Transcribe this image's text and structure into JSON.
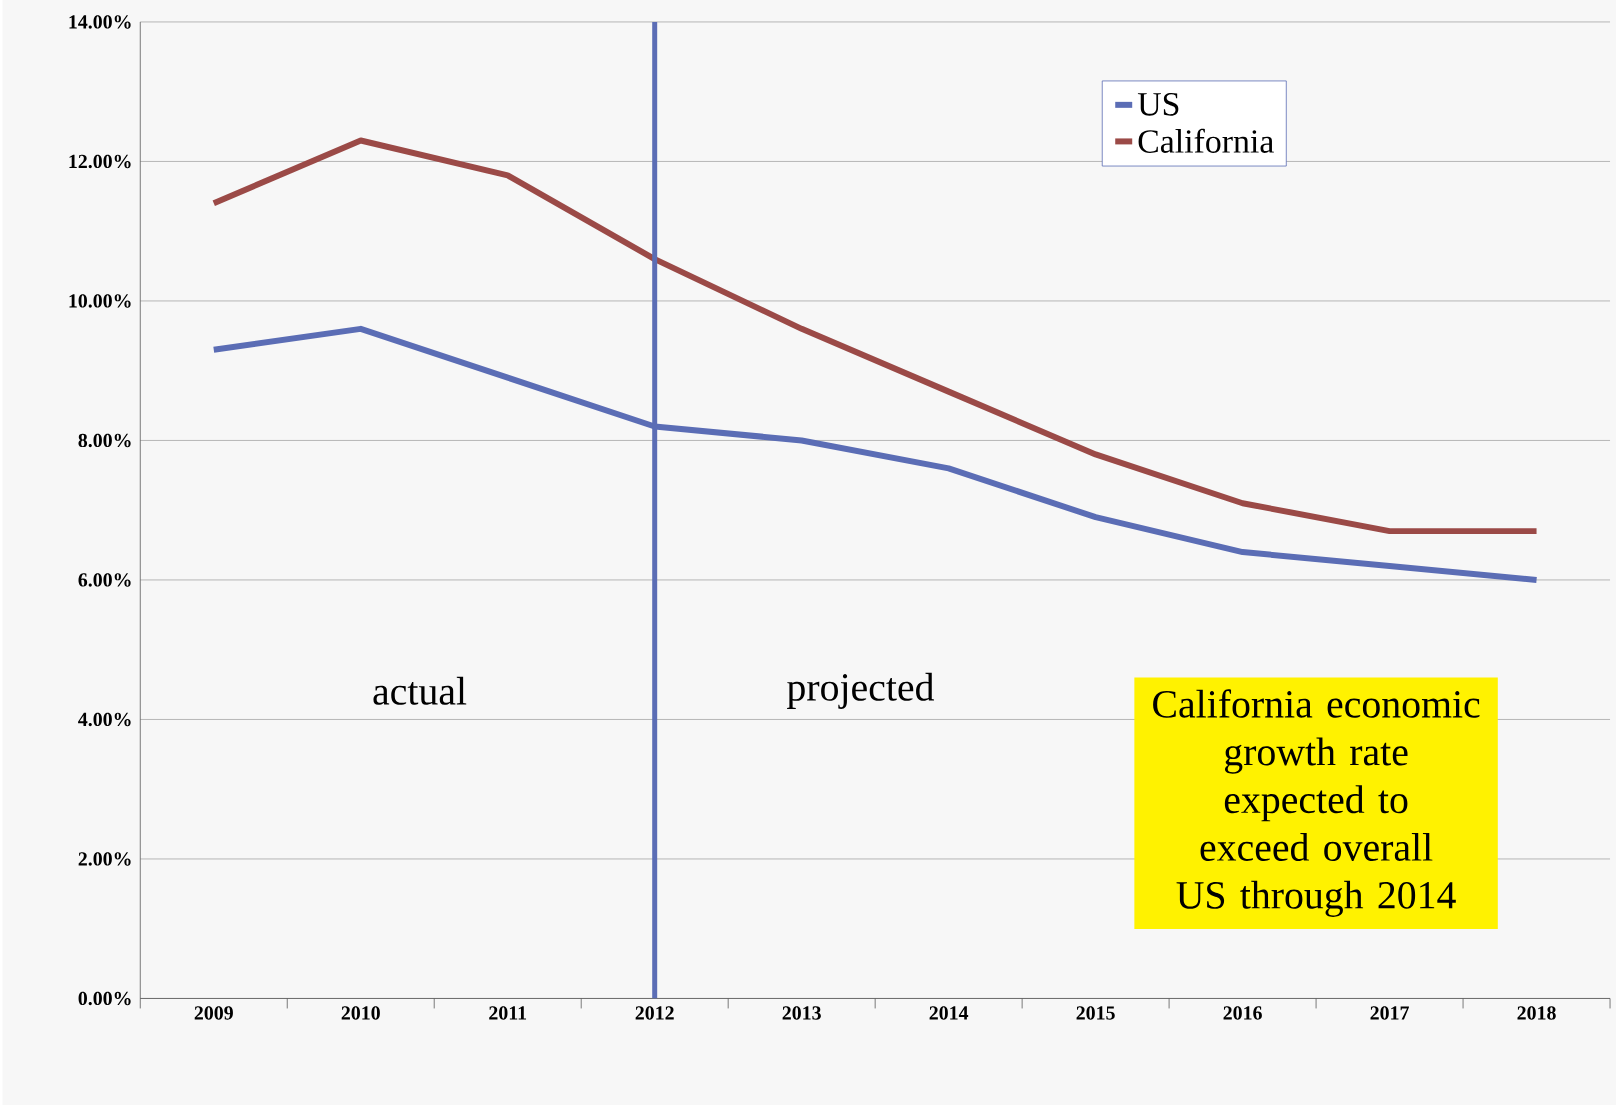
{
  "chart_data": {
    "type": "line",
    "categories": [
      "2009",
      "2010",
      "2011",
      "2012",
      "2013",
      "2014",
      "2015",
      "2016",
      "2017",
      "2018"
    ],
    "series": [
      {
        "name": "US",
        "color": "#5b6db5",
        "values": [
          9.3,
          9.6,
          8.9,
          8.2,
          8.0,
          7.6,
          6.9,
          6.4,
          6.2,
          6.0
        ]
      },
      {
        "name": "California",
        "color": "#9b4a47",
        "values": [
          11.4,
          12.3,
          11.8,
          10.6,
          9.6,
          8.7,
          7.8,
          7.1,
          6.7,
          6.7
        ]
      }
    ],
    "ylim": [
      0,
      14
    ],
    "yticks": [
      {
        "value": 0,
        "label": "0.00%"
      },
      {
        "value": 2,
        "label": "2.00%"
      },
      {
        "value": 4,
        "label": "4.00%"
      },
      {
        "value": 6,
        "label": "6.00%"
      },
      {
        "value": 8,
        "label": "8.00%"
      },
      {
        "value": 10,
        "label": "10.00%"
      },
      {
        "value": 12,
        "label": "12.00%"
      },
      {
        "value": 14,
        "label": "14.00%"
      }
    ],
    "grid": "y",
    "legend": "top right",
    "marker": "none",
    "line_style": "solid",
    "ref_lines": [
      {
        "axis": "x",
        "value": "2012",
        "color": "#5b6db5"
      }
    ],
    "annotations": [
      "actual",
      "projected",
      "California economic growth rate expected to exceed overall US through 2014"
    ]
  }
}
